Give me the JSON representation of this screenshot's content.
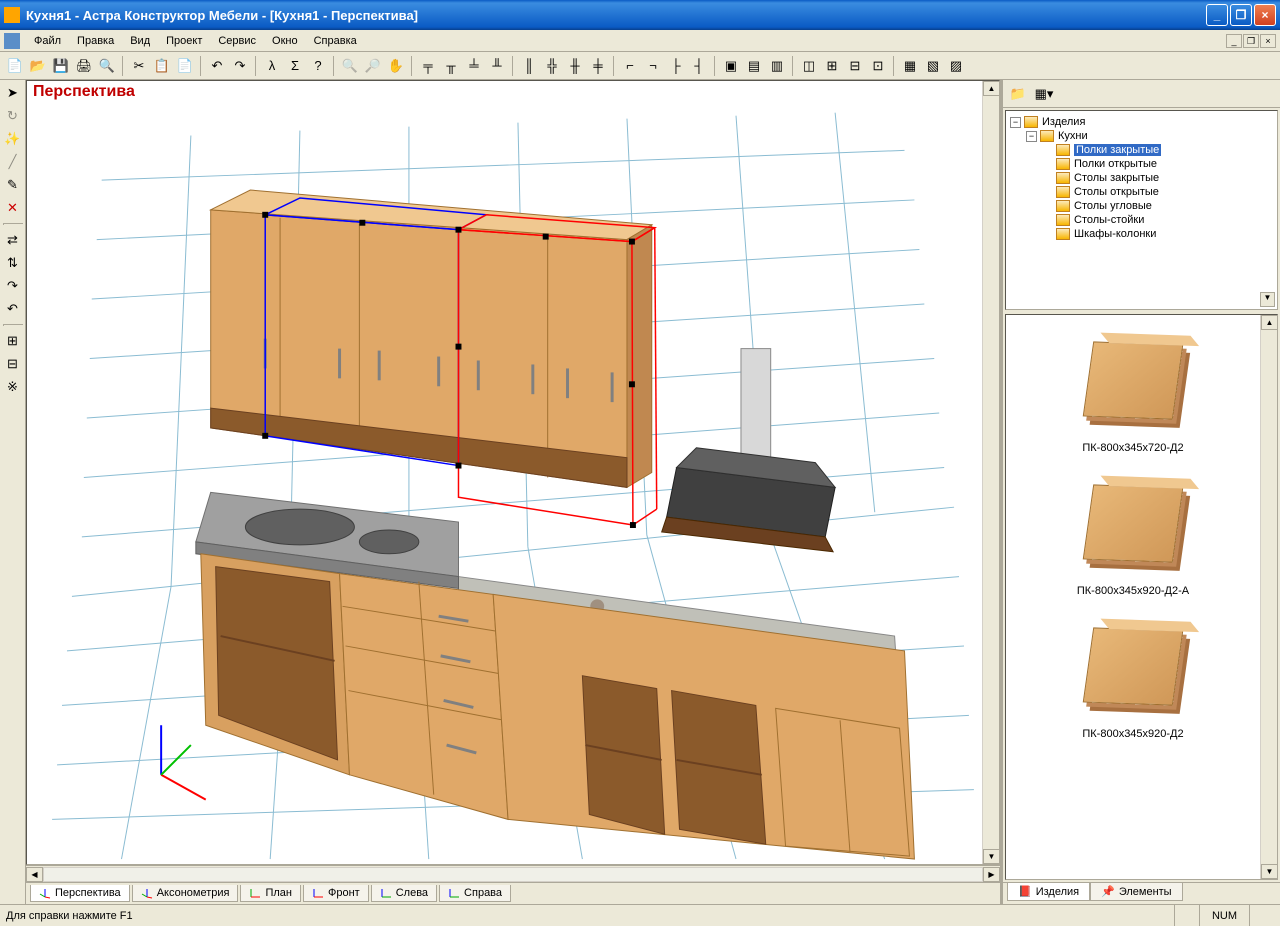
{
  "window": {
    "title": "Кухня1 - Астра Конструктор Мебели - [Кухня1 - Перспектива]",
    "minimize": "_",
    "maximize": "❐",
    "close": "×"
  },
  "menu": {
    "file": "Файл",
    "edit": "Правка",
    "view": "Вид",
    "project": "Проект",
    "service": "Сервис",
    "window": "Окно",
    "help": "Справка"
  },
  "viewport": {
    "label": "Перспектива",
    "label_color": "#c00000",
    "grid_color": "#5aa0c0",
    "selection_color_1": "#0000ff",
    "selection_color_2": "#ff0000",
    "background": "#ffffff",
    "wood_color": "#e0a868"
  },
  "view_tabs": [
    {
      "label": "Перспектива",
      "active": true
    },
    {
      "label": "Аксонометрия",
      "active": false
    },
    {
      "label": "План",
      "active": false
    },
    {
      "label": "Фронт",
      "active": false
    },
    {
      "label": "Слева",
      "active": false
    },
    {
      "label": "Справа",
      "active": false
    }
  ],
  "tree": {
    "root": "Изделия",
    "kitchens": "Кухни",
    "items": [
      "Полки закрытые",
      "Полки открытые",
      "Столы закрытые",
      "Столы открытые",
      "Столы угловые",
      "Столы-стойки",
      "Шкафы-колонки"
    ],
    "selected_index": 0
  },
  "thumbs": [
    {
      "label": "ПК-800х345х720-Д2"
    },
    {
      "label": "ПК-800х345х920-Д2-А"
    },
    {
      "label": "ПК-800х345х920-Д2"
    }
  ],
  "panel_tabs": {
    "products": "Изделия",
    "elements": "Элементы"
  },
  "status": {
    "help": "Для справки нажмите F1",
    "num": "NUM"
  },
  "colors": {
    "titlebar_blue": "#0a5bc4",
    "ui_bg": "#ece9d8",
    "border": "#aca899",
    "highlight": "#316ac5"
  }
}
